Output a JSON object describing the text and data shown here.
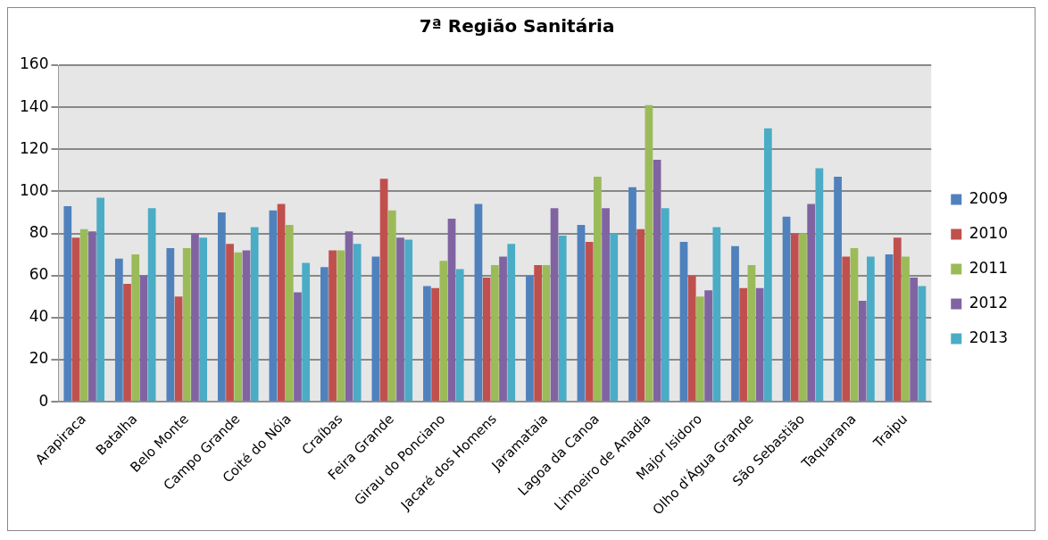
{
  "chart_data": {
    "type": "bar",
    "title": "7ª Região Sanitária",
    "categories": [
      "Arapiraca",
      "Batalha",
      "Belo Monte",
      "Campo Grande",
      "Coité do Nóia",
      "Craíbas",
      "Feira Grande",
      "Girau do Ponciano",
      "Jacaré dos Homens",
      "Jaramataia",
      "Lagoa da Canoa",
      "Limoeiro de Anadia",
      "Major Isidoro",
      "Olho d'Água Grande",
      "São Sebastião",
      "Taquarana",
      "Traipu"
    ],
    "series": [
      {
        "name": "2009",
        "color": "#4f81bd",
        "values": [
          93,
          68,
          73,
          90,
          91,
          64,
          69,
          55,
          94,
          60,
          84,
          102,
          76,
          74,
          88,
          107,
          70
        ]
      },
      {
        "name": "2010",
        "color": "#c0504d",
        "values": [
          78,
          56,
          50,
          75,
          94,
          72,
          106,
          54,
          59,
          65,
          76,
          82,
          60,
          54,
          80,
          69,
          78
        ]
      },
      {
        "name": "2011",
        "color": "#9bbb59",
        "values": [
          82,
          70,
          73,
          71,
          84,
          72,
          91,
          67,
          65,
          65,
          107,
          141,
          50,
          65,
          80,
          73,
          69
        ]
      },
      {
        "name": "2012",
        "color": "#8064a2",
        "values": [
          81,
          60,
          80,
          72,
          52,
          81,
          78,
          87,
          69,
          92,
          92,
          115,
          53,
          54,
          94,
          48,
          59
        ]
      },
      {
        "name": "2013",
        "color": "#4bacc6",
        "values": [
          97,
          92,
          78,
          83,
          66,
          75,
          77,
          63,
          75,
          79,
          80,
          92,
          83,
          130,
          111,
          69,
          55
        ]
      }
    ],
    "ylim": [
      0,
      160
    ],
    "yticks": [
      0,
      20,
      40,
      60,
      80,
      100,
      120,
      140,
      160
    ],
    "grid": "y",
    "legend": "right"
  }
}
